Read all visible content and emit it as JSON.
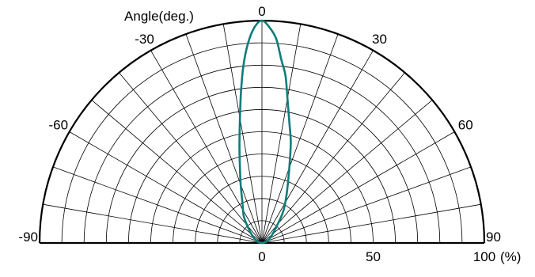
{
  "chart_data": {
    "type": "polar-half",
    "title": "",
    "angle_label": "Angle(deg.)",
    "radial_unit": "(%)",
    "angle_range": [
      -90,
      90
    ],
    "radial_range": [
      0,
      100
    ],
    "angle_ticks": [
      {
        "angle": 0,
        "label": "0"
      },
      {
        "angle": 30,
        "label": "30"
      },
      {
        "angle": -30,
        "label": "-30"
      },
      {
        "angle": 60,
        "label": "60"
      },
      {
        "angle": -60,
        "label": "-60"
      },
      {
        "angle": 90,
        "label": "90"
      },
      {
        "angle": -90,
        "label": "-90"
      }
    ],
    "radial_ticks": [
      {
        "value": 0,
        "label": "0"
      },
      {
        "value": 50,
        "label": "50"
      },
      {
        "value": 100,
        "label": "100"
      }
    ],
    "grid": true,
    "grid_rings": [
      10,
      20,
      30,
      40,
      50,
      60,
      70,
      80,
      90,
      100
    ],
    "grid_spoke_step": 10,
    "series": [
      {
        "color": "#0e7d7a",
        "points": [
          {
            "angle": -90,
            "r": 0
          },
          {
            "angle": -75,
            "r": 2
          },
          {
            "angle": -60,
            "r": 4
          },
          {
            "angle": -45,
            "r": 8
          },
          {
            "angle": -35,
            "r": 14
          },
          {
            "angle": -30,
            "r": 17
          },
          {
            "angle": -25,
            "r": 21
          },
          {
            "angle": -20,
            "r": 28
          },
          {
            "angle": -16,
            "r": 36
          },
          {
            "angle": -13,
            "r": 45
          },
          {
            "angle": -10,
            "r": 57
          },
          {
            "angle": -8,
            "r": 68
          },
          {
            "angle": -6,
            "r": 80
          },
          {
            "angle": -4,
            "r": 90
          },
          {
            "angle": -2,
            "r": 97
          },
          {
            "angle": 0,
            "r": 100
          },
          {
            "angle": 2,
            "r": 97
          },
          {
            "angle": 4,
            "r": 92
          },
          {
            "angle": 6,
            "r": 83
          },
          {
            "angle": 8,
            "r": 76
          },
          {
            "angle": 10,
            "r": 66
          },
          {
            "angle": 13,
            "r": 55
          },
          {
            "angle": 16,
            "r": 47
          },
          {
            "angle": 20,
            "r": 36
          },
          {
            "angle": 25,
            "r": 27
          },
          {
            "angle": 30,
            "r": 21
          },
          {
            "angle": 35,
            "r": 16
          },
          {
            "angle": 45,
            "r": 8
          },
          {
            "angle": 60,
            "r": 4
          },
          {
            "angle": 75,
            "r": 2
          },
          {
            "angle": 90,
            "r": 0
          }
        ]
      }
    ]
  }
}
